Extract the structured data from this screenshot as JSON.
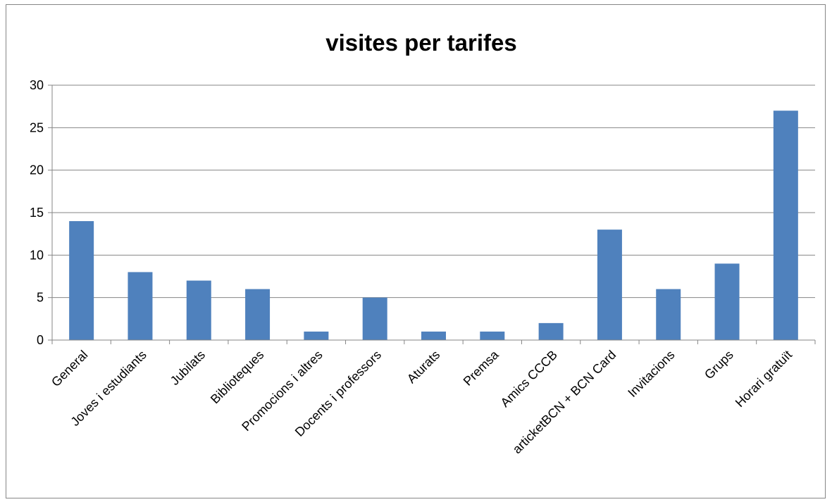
{
  "chart_data": {
    "type": "bar",
    "title": "visites per tarifes",
    "xlabel": "",
    "ylabel": "",
    "categories": [
      "General",
      "Joves i estudiants",
      "Jubilats",
      "Biblioteques",
      "Promocions i altres",
      "Docents i professors",
      "Aturats",
      "Premsa",
      "Amics CCCB",
      "articketBCN + BCN Card",
      "Invitacions",
      "Grups",
      "Horari gratuït"
    ],
    "values": [
      14,
      8,
      7,
      6,
      1,
      5,
      1,
      1,
      2,
      13,
      6,
      9,
      27
    ],
    "ylim": [
      0,
      30
    ],
    "yticks": [
      0,
      5,
      10,
      15,
      20,
      25,
      30
    ],
    "grid": true,
    "legend": "none",
    "bar_color": "#4F81BD",
    "grid_color": "#868686"
  }
}
